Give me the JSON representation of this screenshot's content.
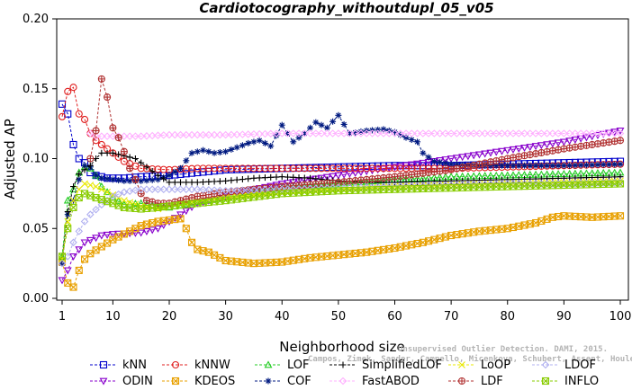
{
  "chart_data": {
    "type": "line",
    "title": "Cardiotocography_withoutdupl_05_v05",
    "xlabel": "Neighborhood size",
    "ylabel": "Adjusted AP",
    "xlim": [
      1,
      100
    ],
    "ylim": [
      0,
      0.2
    ],
    "xticks": [
      "1",
      "10",
      "20",
      "30",
      "40",
      "50",
      "60",
      "70",
      "80",
      "90",
      "100"
    ],
    "yticks": [
      "0.00",
      "0.05",
      "0.10",
      "0.15",
      "0.20"
    ],
    "grid": false,
    "legend_position": "bottom",
    "series": [
      {
        "name": "kNN",
        "color": "#0000cc",
        "marker": "square",
        "points": [
          [
            1,
            0.139
          ],
          [
            2,
            0.132
          ],
          [
            3,
            0.11
          ],
          [
            4,
            0.1
          ],
          [
            5,
            0.097
          ],
          [
            6,
            0.09
          ],
          [
            7,
            0.088
          ],
          [
            8,
            0.087
          ],
          [
            9,
            0.086
          ],
          [
            10,
            0.086
          ],
          [
            12,
            0.086
          ],
          [
            15,
            0.087
          ],
          [
            20,
            0.088
          ],
          [
            25,
            0.09
          ],
          [
            30,
            0.092
          ],
          [
            40,
            0.093
          ],
          [
            50,
            0.094
          ],
          [
            60,
            0.095
          ],
          [
            70,
            0.095
          ],
          [
            80,
            0.096
          ],
          [
            90,
            0.097
          ],
          [
            100,
            0.098
          ]
        ]
      },
      {
        "name": "ODIN",
        "color": "#8800cc",
        "marker": "triangle-down",
        "points": [
          [
            1,
            0.013
          ],
          [
            2,
            0.02
          ],
          [
            3,
            0.03
          ],
          [
            5,
            0.04
          ],
          [
            8,
            0.045
          ],
          [
            10,
            0.046
          ],
          [
            15,
            0.047
          ],
          [
            18,
            0.05
          ],
          [
            20,
            0.055
          ],
          [
            22,
            0.06
          ],
          [
            25,
            0.068
          ],
          [
            30,
            0.073
          ],
          [
            35,
            0.078
          ],
          [
            40,
            0.082
          ],
          [
            50,
            0.088
          ],
          [
            60,
            0.094
          ],
          [
            70,
            0.1
          ],
          [
            80,
            0.106
          ],
          [
            90,
            0.112
          ],
          [
            95,
            0.116
          ],
          [
            100,
            0.12
          ]
        ]
      },
      {
        "name": "kNNW",
        "color": "#e02020",
        "marker": "circle",
        "points": [
          [
            1,
            0.13
          ],
          [
            2,
            0.148
          ],
          [
            3,
            0.151
          ],
          [
            4,
            0.132
          ],
          [
            5,
            0.128
          ],
          [
            6,
            0.118
          ],
          [
            7,
            0.113
          ],
          [
            8,
            0.11
          ],
          [
            10,
            0.104
          ],
          [
            12,
            0.098
          ],
          [
            15,
            0.093
          ],
          [
            20,
            0.092
          ],
          [
            25,
            0.093
          ],
          [
            30,
            0.093
          ],
          [
            40,
            0.093
          ],
          [
            50,
            0.093
          ],
          [
            60,
            0.093
          ],
          [
            70,
            0.093
          ],
          [
            80,
            0.094
          ],
          [
            90,
            0.095
          ],
          [
            100,
            0.096
          ]
        ]
      },
      {
        "name": "KDEOS",
        "color": "#e8a000",
        "marker": "square-x",
        "points": [
          [
            1,
            0.026
          ],
          [
            2,
            0.011
          ],
          [
            3,
            0.008
          ],
          [
            4,
            0.02
          ],
          [
            5,
            0.028
          ],
          [
            6,
            0.032
          ],
          [
            8,
            0.037
          ],
          [
            10,
            0.042
          ],
          [
            12,
            0.046
          ],
          [
            15,
            0.052
          ],
          [
            18,
            0.055
          ],
          [
            20,
            0.056
          ],
          [
            22,
            0.057
          ],
          [
            23,
            0.05
          ],
          [
            24,
            0.04
          ],
          [
            25,
            0.035
          ],
          [
            27,
            0.033
          ],
          [
            30,
            0.027
          ],
          [
            35,
            0.025
          ],
          [
            40,
            0.026
          ],
          [
            45,
            0.029
          ],
          [
            50,
            0.031
          ],
          [
            55,
            0.033
          ],
          [
            60,
            0.036
          ],
          [
            65,
            0.04
          ],
          [
            70,
            0.045
          ],
          [
            75,
            0.048
          ],
          [
            80,
            0.05
          ],
          [
            85,
            0.054
          ],
          [
            88,
            0.058
          ],
          [
            90,
            0.059
          ],
          [
            95,
            0.058
          ],
          [
            100,
            0.059
          ]
        ]
      },
      {
        "name": "LOF",
        "color": "#22cc22",
        "marker": "triangle",
        "points": [
          [
            1,
            0.03
          ],
          [
            2,
            0.07
          ],
          [
            3,
            0.078
          ],
          [
            4,
            0.09
          ],
          [
            5,
            0.094
          ],
          [
            6,
            0.093
          ],
          [
            7,
            0.088
          ],
          [
            8,
            0.08
          ],
          [
            10,
            0.072
          ],
          [
            12,
            0.067
          ],
          [
            15,
            0.068
          ],
          [
            18,
            0.066
          ],
          [
            20,
            0.065
          ],
          [
            25,
            0.069
          ],
          [
            30,
            0.072
          ],
          [
            40,
            0.079
          ],
          [
            50,
            0.082
          ],
          [
            60,
            0.085
          ],
          [
            70,
            0.087
          ],
          [
            80,
            0.088
          ],
          [
            90,
            0.089
          ],
          [
            100,
            0.09
          ]
        ]
      },
      {
        "name": "COF",
        "color": "#001a80",
        "marker": "asterisk",
        "points": [
          [
            1,
            0.025
          ],
          [
            2,
            0.06
          ],
          [
            3,
            0.07
          ],
          [
            4,
            0.085
          ],
          [
            5,
            0.095
          ],
          [
            6,
            0.094
          ],
          [
            7,
            0.088
          ],
          [
            8,
            0.086
          ],
          [
            10,
            0.085
          ],
          [
            12,
            0.084
          ],
          [
            15,
            0.084
          ],
          [
            18,
            0.085
          ],
          [
            20,
            0.088
          ],
          [
            22,
            0.093
          ],
          [
            24,
            0.104
          ],
          [
            26,
            0.106
          ],
          [
            28,
            0.104
          ],
          [
            30,
            0.105
          ],
          [
            32,
            0.108
          ],
          [
            34,
            0.111
          ],
          [
            36,
            0.113
          ],
          [
            38,
            0.109
          ],
          [
            40,
            0.124
          ],
          [
            42,
            0.112
          ],
          [
            44,
            0.118
          ],
          [
            46,
            0.126
          ],
          [
            48,
            0.122
          ],
          [
            50,
            0.131
          ],
          [
            52,
            0.118
          ],
          [
            55,
            0.12
          ],
          [
            58,
            0.121
          ],
          [
            60,
            0.119
          ],
          [
            62,
            0.115
          ],
          [
            64,
            0.112
          ],
          [
            65,
            0.104
          ],
          [
            67,
            0.098
          ],
          [
            70,
            0.096
          ],
          [
            75,
            0.095
          ],
          [
            80,
            0.095
          ],
          [
            90,
            0.095
          ],
          [
            100,
            0.096
          ]
        ]
      },
      {
        "name": "SimplifiedLOF",
        "color": "#000000",
        "marker": "plus",
        "points": [
          [
            1,
            0.028
          ],
          [
            2,
            0.062
          ],
          [
            3,
            0.08
          ],
          [
            4,
            0.089
          ],
          [
            5,
            0.092
          ],
          [
            6,
            0.095
          ],
          [
            7,
            0.1
          ],
          [
            8,
            0.104
          ],
          [
            10,
            0.104
          ],
          [
            12,
            0.102
          ],
          [
            14,
            0.1
          ],
          [
            15,
            0.097
          ],
          [
            16,
            0.094
          ],
          [
            18,
            0.088
          ],
          [
            20,
            0.083
          ],
          [
            25,
            0.083
          ],
          [
            30,
            0.084
          ],
          [
            35,
            0.086
          ],
          [
            40,
            0.087
          ],
          [
            45,
            0.086
          ],
          [
            50,
            0.084
          ],
          [
            55,
            0.083
          ],
          [
            60,
            0.083
          ],
          [
            70,
            0.084
          ],
          [
            80,
            0.085
          ],
          [
            90,
            0.086
          ],
          [
            100,
            0.087
          ]
        ]
      },
      {
        "name": "FastABOD",
        "color": "#ffb0ff",
        "marker": "diamond",
        "points": [
          [
            6,
            0.118
          ],
          [
            7,
            0.116
          ],
          [
            10,
            0.116
          ],
          [
            15,
            0.116
          ],
          [
            20,
            0.117
          ],
          [
            30,
            0.117
          ],
          [
            40,
            0.118
          ],
          [
            50,
            0.118
          ],
          [
            60,
            0.118
          ],
          [
            70,
            0.118
          ],
          [
            80,
            0.118
          ],
          [
            90,
            0.118
          ],
          [
            100,
            0.118
          ]
        ]
      },
      {
        "name": "LoOP",
        "color": "#e8e800",
        "marker": "x",
        "points": [
          [
            1,
            0.028
          ],
          [
            2,
            0.055
          ],
          [
            3,
            0.07
          ],
          [
            4,
            0.078
          ],
          [
            5,
            0.082
          ],
          [
            7,
            0.08
          ],
          [
            10,
            0.074
          ],
          [
            12,
            0.07
          ],
          [
            15,
            0.066
          ],
          [
            18,
            0.064
          ],
          [
            20,
            0.066
          ],
          [
            25,
            0.07
          ],
          [
            30,
            0.072
          ],
          [
            40,
            0.076
          ],
          [
            50,
            0.078
          ],
          [
            60,
            0.08
          ],
          [
            70,
            0.081
          ],
          [
            80,
            0.082
          ],
          [
            90,
            0.083
          ],
          [
            100,
            0.084
          ]
        ]
      },
      {
        "name": "LDF",
        "color": "#b03030",
        "marker": "circle-plus",
        "points": [
          [
            6,
            0.1
          ],
          [
            7,
            0.12
          ],
          [
            8,
            0.157
          ],
          [
            9,
            0.144
          ],
          [
            10,
            0.122
          ],
          [
            11,
            0.115
          ],
          [
            12,
            0.105
          ],
          [
            13,
            0.093
          ],
          [
            14,
            0.085
          ],
          [
            15,
            0.075
          ],
          [
            16,
            0.07
          ],
          [
            18,
            0.068
          ],
          [
            20,
            0.068
          ],
          [
            25,
            0.073
          ],
          [
            30,
            0.076
          ],
          [
            40,
            0.08
          ],
          [
            50,
            0.083
          ],
          [
            60,
            0.087
          ],
          [
            70,
            0.092
          ],
          [
            80,
            0.1
          ],
          [
            90,
            0.107
          ],
          [
            100,
            0.113
          ]
        ]
      },
      {
        "name": "LDOF",
        "color": "#b0b0f0",
        "marker": "diamond",
        "points": [
          [
            1,
            0.025
          ],
          [
            2,
            0.03
          ],
          [
            3,
            0.04
          ],
          [
            4,
            0.048
          ],
          [
            5,
            0.055
          ],
          [
            6,
            0.06
          ],
          [
            8,
            0.067
          ],
          [
            10,
            0.073
          ],
          [
            12,
            0.076
          ],
          [
            15,
            0.078
          ],
          [
            20,
            0.078
          ],
          [
            25,
            0.078
          ],
          [
            30,
            0.077
          ],
          [
            40,
            0.078
          ],
          [
            50,
            0.079
          ],
          [
            60,
            0.08
          ],
          [
            70,
            0.081
          ],
          [
            80,
            0.082
          ],
          [
            90,
            0.082
          ],
          [
            100,
            0.083
          ]
        ]
      },
      {
        "name": "INFLO",
        "color": "#88cc00",
        "marker": "square-x",
        "points": [
          [
            1,
            0.03
          ],
          [
            2,
            0.05
          ],
          [
            3,
            0.065
          ],
          [
            4,
            0.072
          ],
          [
            5,
            0.075
          ],
          [
            7,
            0.072
          ],
          [
            10,
            0.068
          ],
          [
            12,
            0.065
          ],
          [
            15,
            0.064
          ],
          [
            18,
            0.065
          ],
          [
            20,
            0.066
          ],
          [
            25,
            0.068
          ],
          [
            30,
            0.07
          ],
          [
            40,
            0.075
          ],
          [
            50,
            0.077
          ],
          [
            60,
            0.078
          ],
          [
            70,
            0.079
          ],
          [
            80,
            0.08
          ],
          [
            90,
            0.081
          ],
          [
            100,
            0.082
          ]
        ]
      }
    ]
  },
  "legend": {
    "rows": [
      [
        "kNN",
        "kNNW",
        "LOF",
        "SimplifiedLOF",
        "LoOP",
        "LDOF"
      ],
      [
        "ODIN",
        "KDEOS",
        "COF",
        "FastABOD",
        "LDF",
        "INFLO"
      ]
    ]
  },
  "watermark": {
    "line1": "Unsupervised Outlier Detection. DAMI, 2015.",
    "line2": "Campos, Zimek, Sander, Campello, Micenkova, Schubert, Assent, Houle"
  }
}
